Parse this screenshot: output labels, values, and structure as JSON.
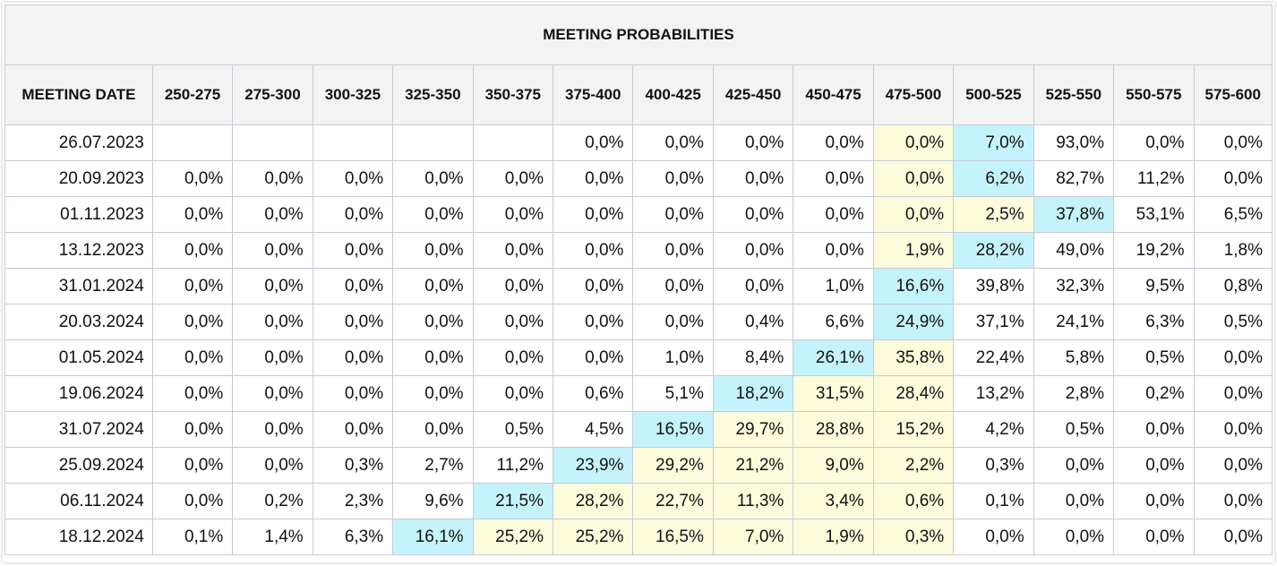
{
  "title": "MEETING PROBABILITIES",
  "columns": [
    "MEETING DATE",
    "250-275",
    "275-300",
    "300-325",
    "325-350",
    "350-375",
    "375-400",
    "400-425",
    "425-450",
    "450-475",
    "475-500",
    "500-525",
    "525-550",
    "550-575",
    "575-600"
  ],
  "rows": [
    {
      "date": "26.07.2023",
      "cells": [
        "",
        "",
        "",
        "",
        "",
        "0,0%",
        "0,0%",
        "0,0%",
        "0,0%",
        "0,0%",
        "7,0%",
        "93,0%",
        "0,0%",
        "0,0%"
      ]
    },
    {
      "date": "20.09.2023",
      "cells": [
        "0,0%",
        "0,0%",
        "0,0%",
        "0,0%",
        "0,0%",
        "0,0%",
        "0,0%",
        "0,0%",
        "0,0%",
        "0,0%",
        "6,2%",
        "82,7%",
        "11,2%",
        "0,0%"
      ]
    },
    {
      "date": "01.11.2023",
      "cells": [
        "0,0%",
        "0,0%",
        "0,0%",
        "0,0%",
        "0,0%",
        "0,0%",
        "0,0%",
        "0,0%",
        "0,0%",
        "0,0%",
        "2,5%",
        "37,8%",
        "53,1%",
        "6,5%"
      ]
    },
    {
      "date": "13.12.2023",
      "cells": [
        "0,0%",
        "0,0%",
        "0,0%",
        "0,0%",
        "0,0%",
        "0,0%",
        "0,0%",
        "0,0%",
        "0,0%",
        "1,9%",
        "28,2%",
        "49,0%",
        "19,2%",
        "1,8%"
      ]
    },
    {
      "date": "31.01.2024",
      "cells": [
        "0,0%",
        "0,0%",
        "0,0%",
        "0,0%",
        "0,0%",
        "0,0%",
        "0,0%",
        "0,0%",
        "1,0%",
        "16,6%",
        "39,8%",
        "32,3%",
        "9,5%",
        "0,8%"
      ]
    },
    {
      "date": "20.03.2024",
      "cells": [
        "0,0%",
        "0,0%",
        "0,0%",
        "0,0%",
        "0,0%",
        "0,0%",
        "0,0%",
        "0,4%",
        "6,6%",
        "24,9%",
        "37,1%",
        "24,1%",
        "6,3%",
        "0,5%"
      ]
    },
    {
      "date": "01.05.2024",
      "cells": [
        "0,0%",
        "0,0%",
        "0,0%",
        "0,0%",
        "0,0%",
        "0,0%",
        "1,0%",
        "8,4%",
        "26,1%",
        "35,8%",
        "22,4%",
        "5,8%",
        "0,5%",
        "0,0%"
      ]
    },
    {
      "date": "19.06.2024",
      "cells": [
        "0,0%",
        "0,0%",
        "0,0%",
        "0,0%",
        "0,0%",
        "0,6%",
        "5,1%",
        "18,2%",
        "31,5%",
        "28,4%",
        "13,2%",
        "2,8%",
        "0,2%",
        "0,0%"
      ]
    },
    {
      "date": "31.07.2024",
      "cells": [
        "0,0%",
        "0,0%",
        "0,0%",
        "0,0%",
        "0,5%",
        "4,5%",
        "16,5%",
        "29,7%",
        "28,8%",
        "15,2%",
        "4,2%",
        "0,5%",
        "0,0%",
        "0,0%"
      ]
    },
    {
      "date": "25.09.2024",
      "cells": [
        "0,0%",
        "0,0%",
        "0,3%",
        "2,7%",
        "11,2%",
        "23,9%",
        "29,2%",
        "21,2%",
        "9,0%",
        "2,2%",
        "0,3%",
        "0,0%",
        "0,0%",
        "0,0%"
      ]
    },
    {
      "date": "06.11.2024",
      "cells": [
        "0,0%",
        "0,2%",
        "2,3%",
        "9,6%",
        "21,5%",
        "28,2%",
        "22,7%",
        "11,3%",
        "3,4%",
        "0,6%",
        "0,1%",
        "0,0%",
        "0,0%",
        "0,0%"
      ]
    },
    {
      "date": "18.12.2024",
      "cells": [
        "0,1%",
        "1,4%",
        "6,3%",
        "16,1%",
        "25,2%",
        "25,2%",
        "16,5%",
        "7,0%",
        "1,9%",
        "0,3%",
        "0,0%",
        "0,0%",
        "0,0%",
        "0,0%"
      ]
    }
  ],
  "highlights": {
    "cyan_color": "#c5f3fb",
    "yellow_color": "#fcfbdc",
    "cyan": [
      [
        0,
        11
      ],
      [
        1,
        11
      ],
      [
        2,
        12
      ],
      [
        3,
        11
      ],
      [
        4,
        10
      ],
      [
        5,
        10
      ],
      [
        6,
        9
      ],
      [
        7,
        8
      ],
      [
        8,
        7
      ],
      [
        9,
        6
      ],
      [
        10,
        5
      ],
      [
        11,
        4
      ]
    ],
    "yellow": [
      [
        0,
        10
      ],
      [
        1,
        10
      ],
      [
        2,
        10
      ],
      [
        2,
        11
      ],
      [
        3,
        10
      ],
      [
        6,
        10
      ],
      [
        7,
        9
      ],
      [
        7,
        10
      ],
      [
        8,
        8
      ],
      [
        8,
        9
      ],
      [
        8,
        10
      ],
      [
        9,
        7
      ],
      [
        9,
        8
      ],
      [
        9,
        9
      ],
      [
        9,
        10
      ],
      [
        10,
        6
      ],
      [
        10,
        7
      ],
      [
        10,
        8
      ],
      [
        10,
        9
      ],
      [
        10,
        10
      ],
      [
        11,
        5
      ],
      [
        11,
        6
      ],
      [
        11,
        7
      ],
      [
        11,
        8
      ],
      [
        11,
        9
      ],
      [
        11,
        10
      ]
    ]
  }
}
